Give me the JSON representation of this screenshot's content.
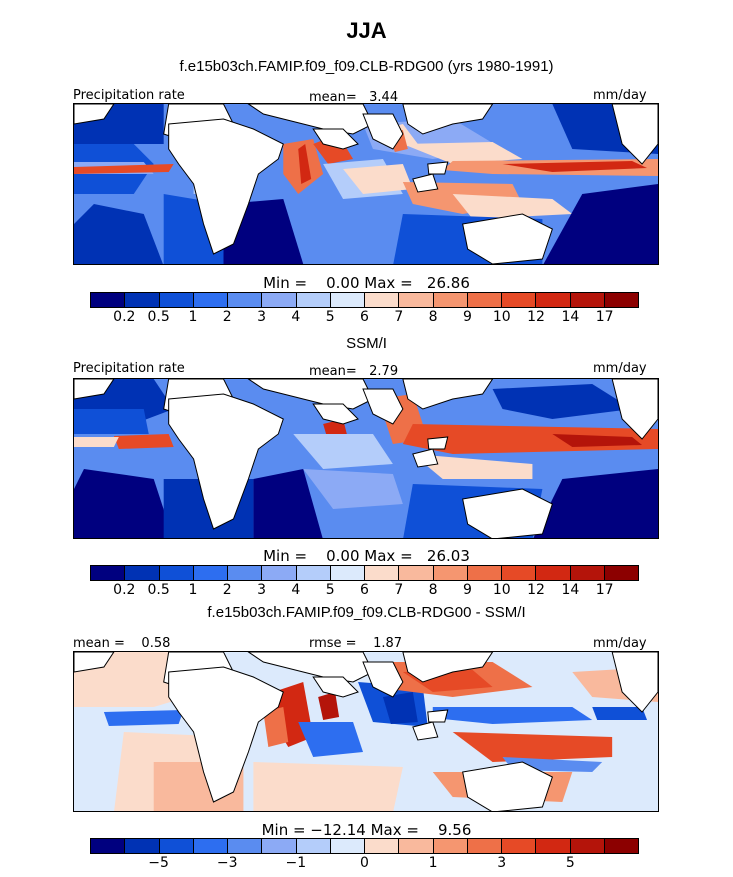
{
  "title": "JJA",
  "colors": [
    "#00007f",
    "#0032b4",
    "#0f50d7",
    "#2d6ef0",
    "#5a8cf0",
    "#8caaf5",
    "#b4cdfa",
    "#dceafc",
    "#fbdccb",
    "#f9b99d",
    "#f59670",
    "#ee7048",
    "#e64a26",
    "#d22812",
    "#b4140a",
    "#8c0000"
  ],
  "panels": [
    {
      "subtitle": "f.e15b03ch.FAMIP.f09_f09.CLB-RDG00 (yrs 1980-1991)",
      "left_label": "Precipitation rate",
      "mid_label": "mean=   3.44",
      "unit": "mm/day",
      "min_max": "Min =    0.00 Max =   26.86",
      "ticks": [
        "0.2",
        "0.5",
        "1",
        "2",
        "3",
        "4",
        "5",
        "6",
        "7",
        "8",
        "9",
        "10",
        "12",
        "14",
        "17"
      ],
      "variant": "model"
    },
    {
      "subtitle": "SSM/I",
      "left_label": "Precipitation rate",
      "mid_label": "mean=   2.79",
      "unit": "mm/day",
      "min_max": "Min =    0.00 Max =   26.03",
      "ticks": [
        "0.2",
        "0.5",
        "1",
        "2",
        "3",
        "4",
        "5",
        "6",
        "7",
        "8",
        "9",
        "10",
        "12",
        "14",
        "17"
      ],
      "variant": "obs"
    },
    {
      "subtitle": "f.e15b03ch.FAMIP.f09_f09.CLB-RDG00 - SSM/I",
      "left_label": "mean =    0.58",
      "mid_label": "rmse =    1.87",
      "unit": "mm/day",
      "min_max": "Min = −12.14 Max =    9.56",
      "ticks": [
        "−5",
        "−3",
        "−1",
        "0",
        "1",
        "3",
        "5"
      ],
      "variant": "diff"
    }
  ]
}
